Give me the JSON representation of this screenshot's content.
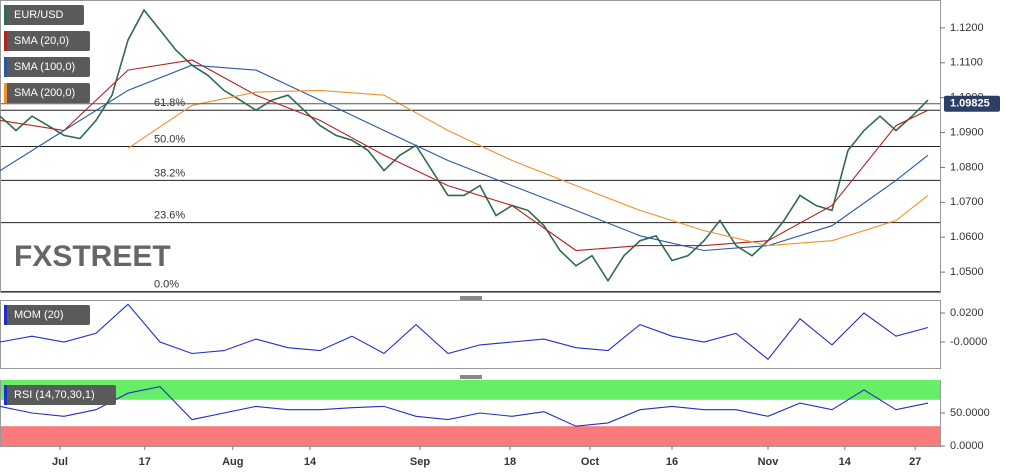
{
  "watermark": "FXSTREET",
  "chart_data": [
    {
      "type": "line",
      "title": "EUR/USD",
      "xlim": [
        0,
        117.5
      ],
      "ylim": [
        1.0443,
        1.128
      ],
      "yticks": [
        {
          "value": 1.05,
          "label": "1.0500"
        },
        {
          "value": 1.06,
          "label": "1.0600"
        },
        {
          "value": 1.07,
          "label": "1.0700"
        },
        {
          "value": 1.08,
          "label": "1.0800"
        },
        {
          "value": 1.09,
          "label": "1.0900"
        },
        {
          "value": 1.1,
          "label": "1.1000"
        },
        {
          "value": 1.11,
          "label": "1.1100"
        },
        {
          "value": 1.12,
          "label": "1.1200"
        }
      ],
      "last_price": 1.09825,
      "last_price_color": "#2c3e66",
      "fib_levels": [
        {
          "label": "61.8%",
          "price": 1.0964
        },
        {
          "label": "50.0%",
          "price": 1.086
        },
        {
          "label": "38.2%",
          "price": 1.0763
        },
        {
          "label": "23.6%",
          "price": 1.0642
        },
        {
          "label": "0.0%",
          "price": 1.0444
        }
      ],
      "series": [
        {
          "name": "EUR/USD",
          "color": "#2e6b4f",
          "x": [
            0,
            2,
            4,
            6,
            8,
            10,
            12,
            14,
            16,
            18,
            20,
            22,
            24,
            26,
            28,
            30,
            32,
            34,
            36,
            38,
            40,
            42,
            44,
            46,
            48,
            50,
            52,
            54,
            56,
            58,
            60,
            62,
            64,
            66,
            68,
            70,
            72,
            74,
            76,
            78,
            80,
            82,
            84,
            86,
            88,
            90,
            92,
            94,
            96,
            98,
            100,
            102,
            104,
            106,
            108,
            110,
            112,
            114,
            116
          ],
          "values": [
            1.0947,
            1.0906,
            1.0947,
            1.092,
            1.0892,
            1.0883,
            1.0935,
            1.1007,
            1.1165,
            1.1251,
            1.1194,
            1.1136,
            1.1093,
            1.1064,
            1.1021,
            1.0993,
            1.0964,
            1.0993,
            1.1007,
            1.0964,
            1.092,
            1.0892,
            1.0878,
            1.0849,
            1.0791,
            1.0835,
            1.0863,
            1.0791,
            1.072,
            1.072,
            1.0748,
            1.0662,
            1.0691,
            1.0677,
            1.0633,
            1.0562,
            1.0518,
            1.0547,
            1.0475,
            1.0547,
            1.059,
            1.0604,
            1.0533,
            1.0547,
            1.059,
            1.0648,
            1.0576,
            1.0547,
            1.059,
            1.0648,
            1.072,
            1.0691,
            1.0677,
            1.0849,
            1.0906,
            1.0947,
            1.0906,
            1.0947,
            1.0993
          ]
        },
        {
          "name": "SMA (20,0)",
          "color": "#b22222",
          "x": [
            0,
            8,
            16,
            24,
            32,
            40,
            48,
            56,
            64,
            72,
            80,
            88,
            96,
            104,
            112,
            116
          ],
          "values": [
            1.0935,
            1.0906,
            1.1079,
            1.1108,
            1.1007,
            1.0935,
            1.0835,
            1.0748,
            1.0691,
            1.0562,
            1.0576,
            1.0576,
            1.059,
            1.0691,
            1.092,
            1.0964
          ]
        },
        {
          "name": "SMA (100,0)",
          "color": "#2a57a5",
          "x": [
            0,
            8,
            16,
            24,
            32,
            40,
            48,
            56,
            64,
            72,
            80,
            88,
            96,
            104,
            112,
            116
          ],
          "values": [
            1.0791,
            1.0906,
            1.1021,
            1.1093,
            1.1079,
            1.0993,
            1.0906,
            1.082,
            1.0748,
            1.0677,
            1.0604,
            1.0562,
            1.0576,
            1.0633,
            1.0763,
            1.0835
          ]
        },
        {
          "name": "SMA (200,0)",
          "color": "#f0922a",
          "x": [
            16,
            24,
            32,
            40,
            48,
            56,
            64,
            72,
            80,
            88,
            96,
            104,
            112,
            116
          ],
          "values": [
            1.0855,
            1.0978,
            1.1016,
            1.1021,
            1.1007,
            1.0906,
            1.082,
            1.0748,
            1.0677,
            1.0619,
            1.0576,
            1.059,
            1.0648,
            1.072
          ]
        }
      ]
    },
    {
      "type": "line",
      "title": "MOM (20)",
      "xlim": [
        0,
        117.5
      ],
      "ylim": [
        -0.018,
        0.029
      ],
      "yticks": [
        {
          "value": 0,
          "label": "-0.0000"
        },
        {
          "value": 0.02,
          "label": "0.0200"
        }
      ],
      "series": [
        {
          "name": "MOM (20)",
          "color": "#1f2fc9",
          "x": [
            0,
            4,
            8,
            12,
            16,
            20,
            24,
            28,
            32,
            36,
            40,
            44,
            48,
            52,
            56,
            60,
            64,
            68,
            72,
            76,
            80,
            84,
            88,
            92,
            96,
            100,
            104,
            108,
            112,
            116
          ],
          "values": [
            0,
            0.004,
            0,
            0.006,
            0.026,
            0,
            -0.008,
            -0.006,
            0.002,
            -0.004,
            -0.006,
            0.004,
            -0.008,
            0.012,
            -0.008,
            -0.002,
            0,
            0.002,
            -0.004,
            -0.006,
            0.012,
            0.004,
            0,
            0.006,
            -0.012,
            0.016,
            -0.002,
            0.02,
            0.004,
            0.01
          ]
        }
      ]
    },
    {
      "type": "line",
      "title": "RSI (14,70,30,1)",
      "xlim": [
        0,
        117.5
      ],
      "ylim": [
        0,
        100
      ],
      "upper_band": 70,
      "lower_band": 30,
      "upper_color": "#66ee66",
      "lower_color": "#f87a7a",
      "yticks": [
        {
          "value": 0,
          "label": "0.0000"
        },
        {
          "value": 50,
          "label": "50.0000"
        }
      ],
      "xticks": [
        {
          "value": 7.5,
          "label": "Jul"
        },
        {
          "value": 18.1,
          "label": "17"
        },
        {
          "value": 29.1,
          "label": "Aug"
        },
        {
          "value": 38.75,
          "label": "14"
        },
        {
          "value": 52.5,
          "label": "Sep"
        },
        {
          "value": 63.75,
          "label": "18"
        },
        {
          "value": 73.75,
          "label": "Oct"
        },
        {
          "value": 84,
          "label": "16"
        },
        {
          "value": 96,
          "label": "Nov"
        },
        {
          "value": 105.6,
          "label": "14"
        },
        {
          "value": 114.4,
          "label": "27"
        }
      ],
      "series": [
        {
          "name": "RSI (14,70,30,1)",
          "color": "#1f2fc9",
          "x": [
            0,
            4,
            8,
            12,
            16,
            20,
            24,
            28,
            32,
            36,
            40,
            44,
            48,
            52,
            56,
            60,
            64,
            68,
            72,
            76,
            80,
            84,
            88,
            92,
            96,
            100,
            104,
            108,
            112,
            116
          ],
          "values": [
            60,
            50,
            45,
            55,
            80,
            90,
            40,
            50,
            60,
            55,
            55,
            58,
            60,
            45,
            40,
            50,
            45,
            52,
            30,
            35,
            55,
            60,
            55,
            55,
            45,
            65,
            55,
            85,
            55,
            65
          ]
        }
      ]
    }
  ]
}
